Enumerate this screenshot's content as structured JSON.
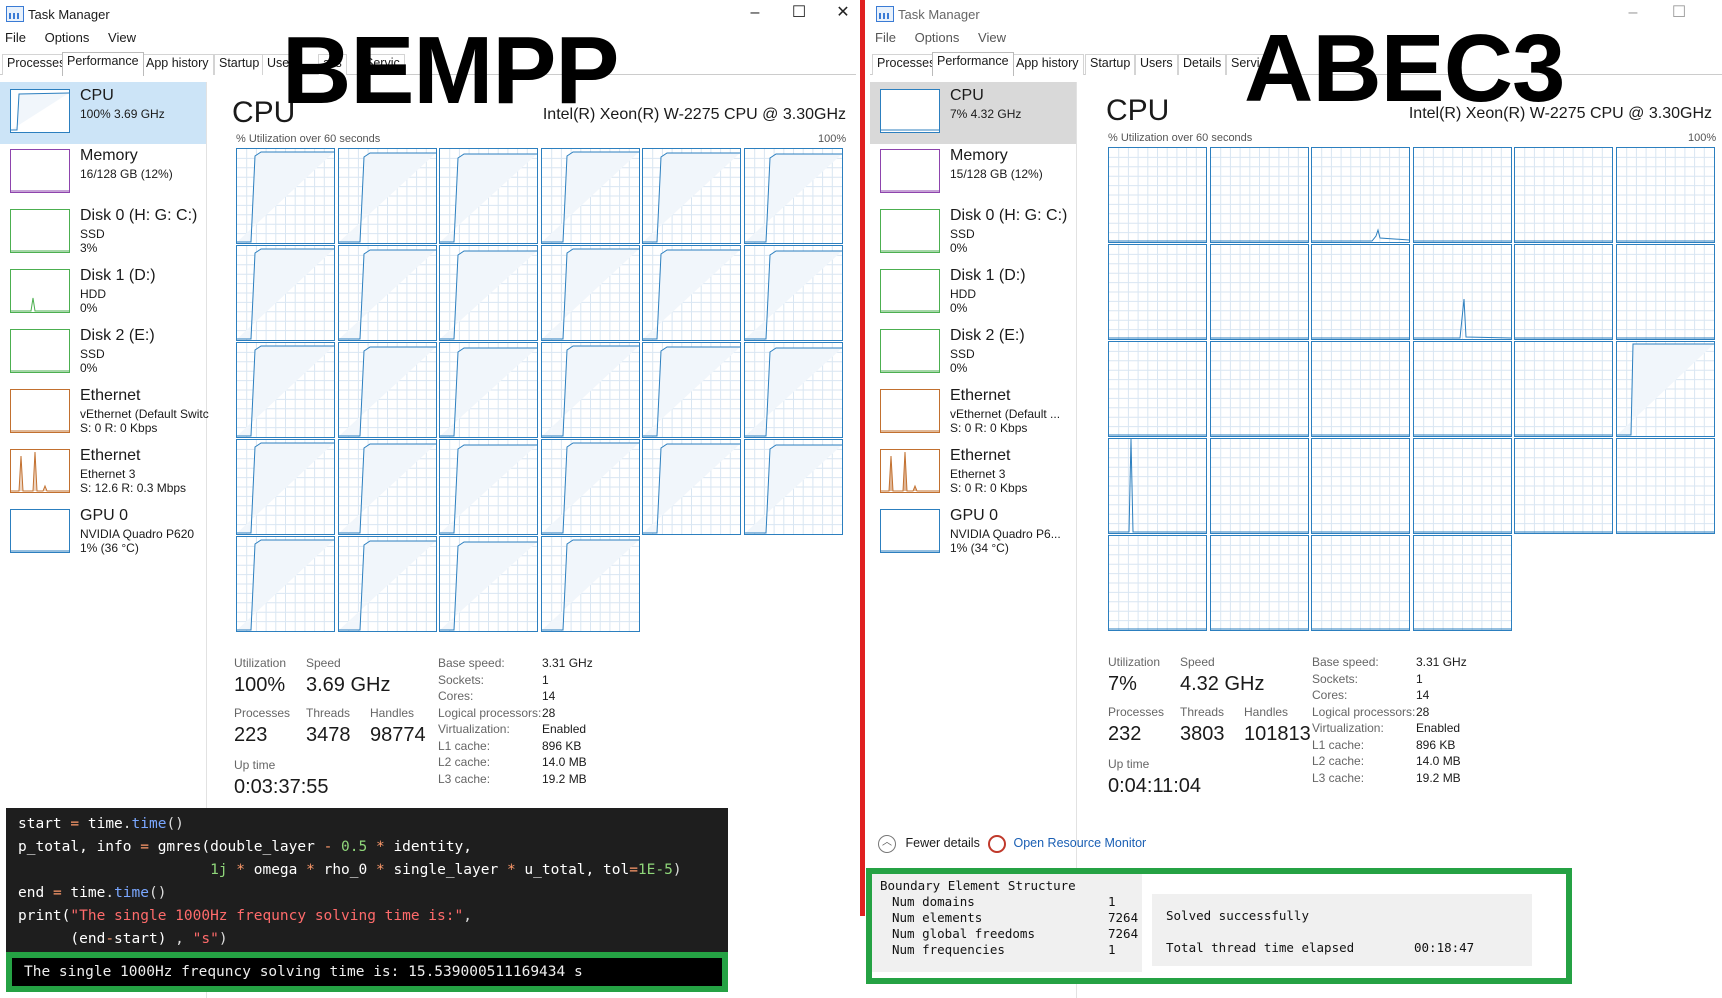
{
  "left": {
    "window_title": "Task Manager",
    "menu": [
      "File",
      "Options",
      "View"
    ],
    "tabs": [
      "Processes",
      "Performance",
      "App history",
      "Startup",
      "Use",
      "ails",
      "Servic"
    ],
    "active_tab": "Performance",
    "sidebar": [
      {
        "name": "CPU",
        "sub1": "100%  3.69 GHz",
        "sub2": "",
        "sub3": "",
        "color": "#2c7fbf"
      },
      {
        "name": "Memory",
        "sub1": "16/128 GB (12%)",
        "sub2": "",
        "sub3": "",
        "color": "#8e44ad"
      },
      {
        "name": "Disk 0 (H: G: C:)",
        "sub1": "SSD",
        "sub2": "3%",
        "sub3": "",
        "color": "#4caf50"
      },
      {
        "name": "Disk 1 (D:)",
        "sub1": "HDD",
        "sub2": "0%",
        "sub3": "",
        "color": "#4caf50"
      },
      {
        "name": "Disk 2 (E:)",
        "sub1": "SSD",
        "sub2": "0%",
        "sub3": "",
        "color": "#4caf50"
      },
      {
        "name": "Ethernet",
        "sub1": "vEthernet (Default Switc",
        "sub2": "S: 0  R: 0 Kbps",
        "sub3": "",
        "color": "#c2702f"
      },
      {
        "name": "Ethernet",
        "sub1": "Ethernet 3",
        "sub2": "S: 12.6  R: 0.3 Mbps",
        "sub3": "",
        "color": "#c2702f"
      },
      {
        "name": "GPU 0",
        "sub1": "NVIDIA Quadro P620",
        "sub2": "1% (36 °C)",
        "sub3": "",
        "color": "#2c7fbf"
      }
    ],
    "main_title": "CPU",
    "cpu_model": "Intel(R) Xeon(R) W-2275 CPU @ 3.30GHz",
    "graph_label": "% Utilization over 60 seconds",
    "graph_max": "100%",
    "stats": {
      "utilization_label": "Utilization",
      "utilization": "100%",
      "speed_label": "Speed",
      "speed": "3.69 GHz",
      "processes_label": "Processes",
      "processes": "223",
      "threads_label": "Threads",
      "threads": "3478",
      "handles_label": "Handles",
      "handles": "98774",
      "uptime_label": "Up time",
      "uptime": "0:03:37:55"
    },
    "specs": [
      [
        "Base speed:",
        "3.31 GHz"
      ],
      [
        "Sockets:",
        "1"
      ],
      [
        "Cores:",
        "14"
      ],
      [
        "Logical processors:",
        "28"
      ],
      [
        "Virtualization:",
        "Enabled"
      ],
      [
        "L1 cache:",
        "896 KB"
      ],
      [
        "L2 cache:",
        "14.0 MB"
      ],
      [
        "L3 cache:",
        "19.2 MB"
      ]
    ],
    "overlay_label": "BEMPP"
  },
  "right": {
    "window_title": "Task Manager",
    "menu": [
      "File",
      "Options",
      "View"
    ],
    "tabs": [
      "Processes",
      "Performance",
      "App history",
      "Startup",
      "Users",
      "Details",
      "Servi"
    ],
    "active_tab": "Performance",
    "sidebar": [
      {
        "name": "CPU",
        "sub1": "7%  4.32 GHz",
        "sub2": "",
        "color": "#2c7fbf"
      },
      {
        "name": "Memory",
        "sub1": "15/128 GB (12%)",
        "sub2": "",
        "color": "#8e44ad"
      },
      {
        "name": "Disk 0 (H: G: C:)",
        "sub1": "SSD",
        "sub2": "0%",
        "color": "#4caf50"
      },
      {
        "name": "Disk 1 (D:)",
        "sub1": "HDD",
        "sub2": "0%",
        "color": "#4caf50"
      },
      {
        "name": "Disk 2 (E:)",
        "sub1": "SSD",
        "sub2": "0%",
        "color": "#4caf50"
      },
      {
        "name": "Ethernet",
        "sub1": "vEthernet (Default ...",
        "sub2": "S: 0  R: 0 Kbps",
        "color": "#c2702f"
      },
      {
        "name": "Ethernet",
        "sub1": "Ethernet 3",
        "sub2": "S: 0  R: 0 Kbps",
        "color": "#c2702f"
      },
      {
        "name": "GPU 0",
        "sub1": "NVIDIA Quadro P6...",
        "sub2": "1% (34 °C)",
        "color": "#2c7fbf"
      }
    ],
    "main_title": "CPU",
    "cpu_model": "Intel(R) Xeon(R) W-2275 CPU @ 3.30GHz",
    "graph_label": "% Utilization over 60 seconds",
    "graph_max": "100%",
    "stats": {
      "utilization_label": "Utilization",
      "utilization": "7%",
      "speed_label": "Speed",
      "speed": "4.32 GHz",
      "processes_label": "Processes",
      "processes": "232",
      "threads_label": "Threads",
      "threads": "3803",
      "handles_label": "Handles",
      "handles": "101813",
      "uptime_label": "Up time",
      "uptime": "0:04:11:04"
    },
    "specs": [
      [
        "Base speed:",
        "3.31 GHz"
      ],
      [
        "Sockets:",
        "1"
      ],
      [
        "Cores:",
        "14"
      ],
      [
        "Logical processors:",
        "28"
      ],
      [
        "Virtualization:",
        "Enabled"
      ],
      [
        "L1 cache:",
        "896 KB"
      ],
      [
        "L2 cache:",
        "14.0 MB"
      ],
      [
        "L3 cache:",
        "19.2 MB"
      ]
    ],
    "footer": {
      "fewer_details": "Fewer details",
      "open_resource_monitor": "Open Resource Monitor"
    },
    "overlay_label": "ABEC3",
    "abec": {
      "header": "Boundary Element Structure",
      "rows": [
        [
          "Num domains",
          "1"
        ],
        [
          "Num elements",
          "7264"
        ],
        [
          "Num global freedoms",
          "7264"
        ],
        [
          "Num frequencies",
          "1"
        ]
      ],
      "status": "Solved successfully",
      "elapsed_label": "Total thread time elapsed",
      "elapsed": "00:18:47"
    }
  },
  "code": {
    "lines": [
      "start = time.time()",
      "p_total, info = gmres(double_layer - 0.5 * identity,",
      "                      1j * omega * rho_0 * single_layer * u_total, tol=1E-5)",
      "end = time.time()",
      "print(\"The single 1000Hz frequncy solving time is:\",",
      "      (end-start) , \"s\")"
    ],
    "output": "The single 1000Hz frequncy solving time is: 15.539000511169434 s"
  },
  "colors": {
    "cpu_line": "#2c7fbf",
    "cpu_fill": "#f1f6fb",
    "grid": "#d9e6f2",
    "highlight_box": "#25a244",
    "divider": "#e02020"
  }
}
